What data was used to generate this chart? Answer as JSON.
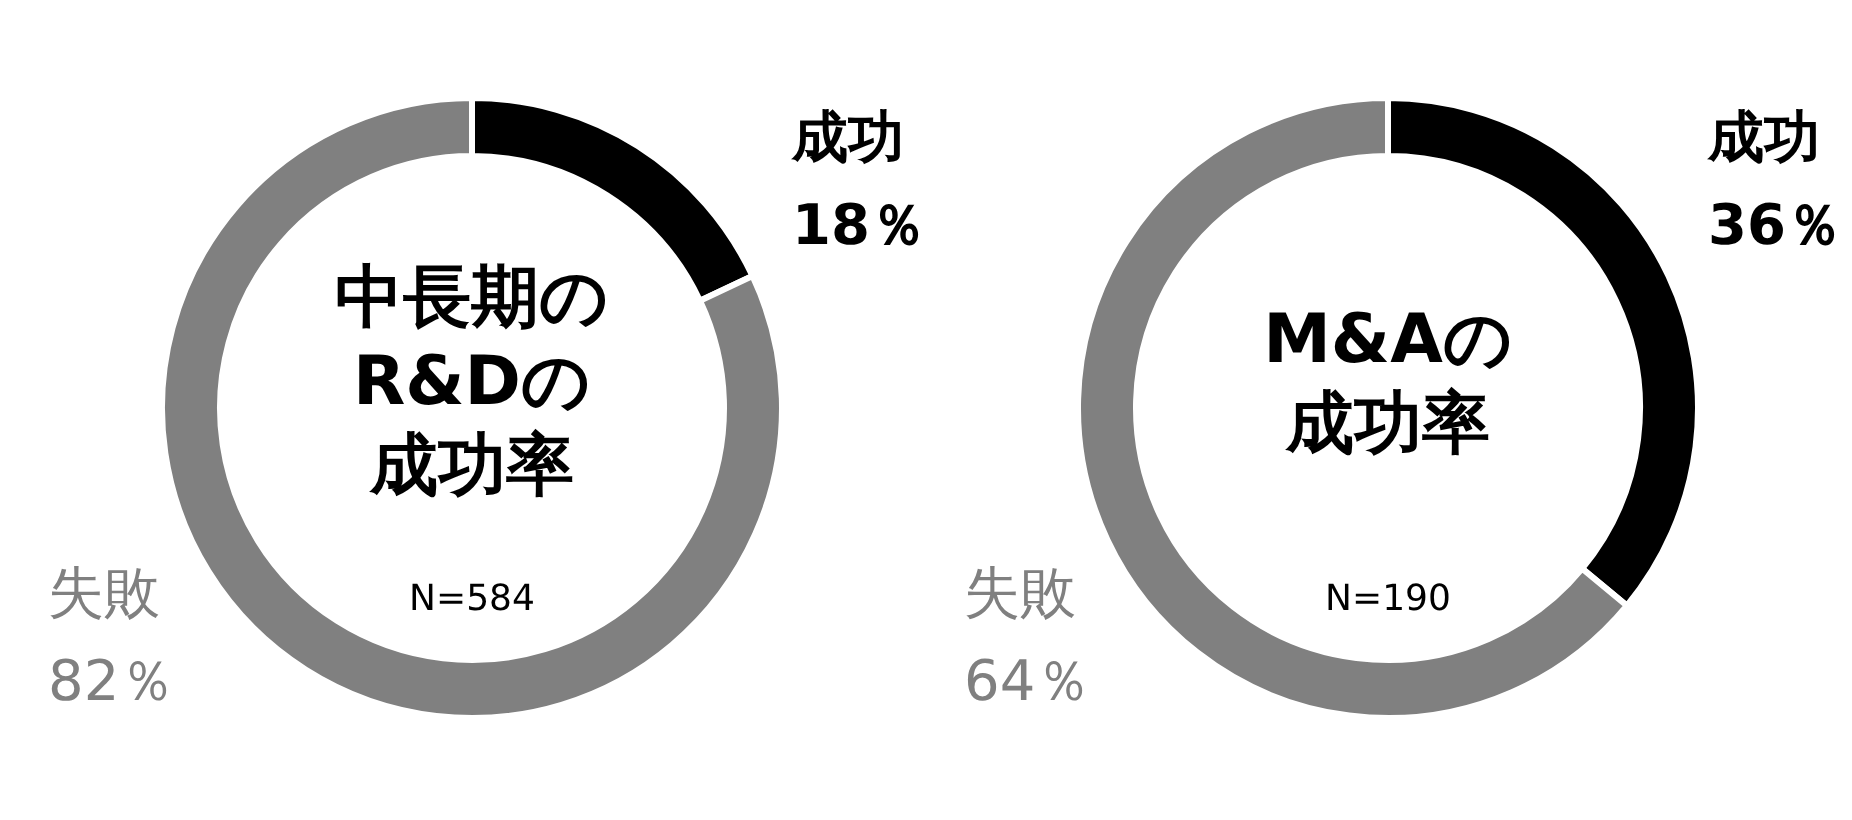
{
  "chart_data": [
    {
      "type": "donut",
      "title": "中長期のR&Dの成功率",
      "annotations": [
        "N=584"
      ],
      "categories": [
        "成功",
        "失敗"
      ],
      "values": [
        18,
        82
      ],
      "colors": [
        "#000000",
        "#808080"
      ],
      "value_labels": [
        "18％",
        "82％"
      ]
    },
    {
      "type": "donut",
      "title": "M&Aの成功率",
      "annotations": [
        "N=190"
      ],
      "categories": [
        "成功",
        "失敗"
      ],
      "values": [
        36,
        64
      ],
      "colors": [
        "#000000",
        "#808080"
      ],
      "value_labels": [
        "36％",
        "64％"
      ]
    }
  ]
}
